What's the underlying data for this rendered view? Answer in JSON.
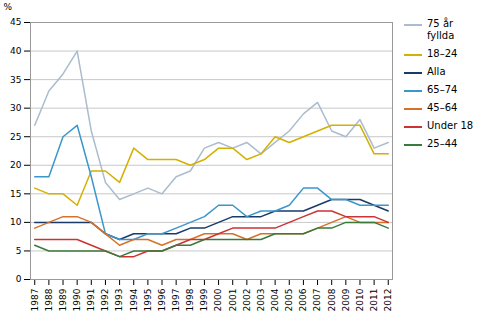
{
  "chart_data": {
    "type": "line",
    "x": [
      1987,
      1988,
      1989,
      1990,
      1991,
      1992,
      1993,
      1994,
      1995,
      1996,
      1997,
      1998,
      1999,
      2000,
      2001,
      2002,
      2003,
      2004,
      2005,
      2006,
      2007,
      2008,
      2009,
      2010,
      2011,
      2012
    ],
    "series": [
      {
        "name": "75 år\nfyllda",
        "color": "#AABCCE",
        "values": [
          27,
          33,
          36,
          40,
          26,
          17,
          14,
          15,
          16,
          15,
          18,
          19,
          23,
          24,
          23,
          24,
          22,
          24,
          26,
          29,
          31,
          26,
          25,
          28,
          23,
          24
        ]
      },
      {
        "name": "18–24",
        "color": "#D4B000",
        "values": [
          16,
          15,
          15,
          13,
          19,
          19,
          17,
          23,
          21,
          21,
          21,
          20,
          21,
          23,
          23,
          21,
          22,
          25,
          24,
          25,
          26,
          27,
          27,
          27,
          22,
          22
        ]
      },
      {
        "name": "Alla",
        "color": "#1A3A6A",
        "values": [
          10,
          10,
          10,
          10,
          10,
          8,
          7,
          8,
          8,
          8,
          8,
          9,
          9,
          10,
          11,
          11,
          11,
          12,
          12,
          12,
          13,
          14,
          14,
          14,
          13,
          12
        ]
      },
      {
        "name": "65–74",
        "color": "#3B96CC",
        "values": [
          18,
          18,
          25,
          27,
          18,
          8,
          7,
          7,
          8,
          8,
          9,
          10,
          11,
          13,
          13,
          11,
          12,
          12,
          13,
          16,
          16,
          14,
          14,
          13,
          13,
          13
        ]
      },
      {
        "name": "45–64",
        "color": "#D4722A",
        "values": [
          9,
          10,
          11,
          11,
          10,
          8,
          6,
          7,
          7,
          6,
          7,
          7,
          8,
          8,
          8,
          7,
          8,
          8,
          8,
          8,
          9,
          10,
          11,
          10,
          10,
          10
        ]
      },
      {
        "name": "Under 18",
        "color": "#CC3333",
        "values": [
          7,
          7,
          7,
          7,
          6,
          5,
          4,
          4,
          5,
          5,
          6,
          7,
          7,
          8,
          9,
          9,
          9,
          9,
          10,
          11,
          12,
          12,
          11,
          11,
          11,
          10
        ]
      },
      {
        "name": "25–44",
        "color": "#3A7A3A",
        "values": [
          6,
          5,
          5,
          5,
          5,
          5,
          4,
          5,
          5,
          5,
          6,
          6,
          7,
          7,
          7,
          7,
          7,
          8,
          8,
          8,
          9,
          9,
          10,
          10,
          10,
          9
        ]
      }
    ],
    "xlim": [
      1986.7,
      2012.3
    ],
    "xticks": [
      1987,
      1988,
      1989,
      1990,
      1991,
      1992,
      1993,
      1994,
      1995,
      1996,
      1997,
      1998,
      1999,
      2000,
      2001,
      2002,
      2003,
      2004,
      2005,
      2006,
      2007,
      2008,
      2009,
      2010,
      2011,
      2012
    ],
    "ylim": [
      0,
      45
    ],
    "yticks": [
      0,
      5,
      10,
      15,
      20,
      25,
      30,
      35,
      40,
      45
    ],
    "ylabel": "%",
    "grid": true,
    "legend": "right"
  }
}
